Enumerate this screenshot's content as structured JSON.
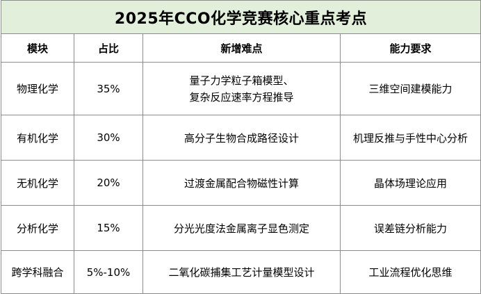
{
  "title": "2025年CCO化学竞赛核心重点考点",
  "headers": [
    "模块",
    "占比",
    "新增难点",
    "能力要求"
  ],
  "rows": [
    {
      "module": "物理化学",
      "share": "35%",
      "difficulty_lines": [
        "量子力学粒子箱模型、",
        "复杂反应速率方程推导"
      ],
      "ability": "三维空间建模能力"
    },
    {
      "module": "有机化学",
      "share": "30%",
      "difficulty": "高分子生物合成路径设计",
      "ability": "机理反推与手性中心分析"
    },
    {
      "module": "无机化学",
      "share": "20%",
      "difficulty": "过渡金属配合物磁性计算",
      "ability": "晶体场理论应用"
    },
    {
      "module": "分析化学",
      "share": "15%",
      "difficulty": "分光光度法金属离子显色测定",
      "ability": "误差链分析能力"
    },
    {
      "module": "跨学科融合",
      "share": "5%-10%",
      "difficulty": "二氧化碳捕集工艺计量模型设计",
      "ability": "工业流程优化思维"
    }
  ],
  "colors": {
    "title_background": "#e2efda",
    "border": "#8c8c8c"
  }
}
